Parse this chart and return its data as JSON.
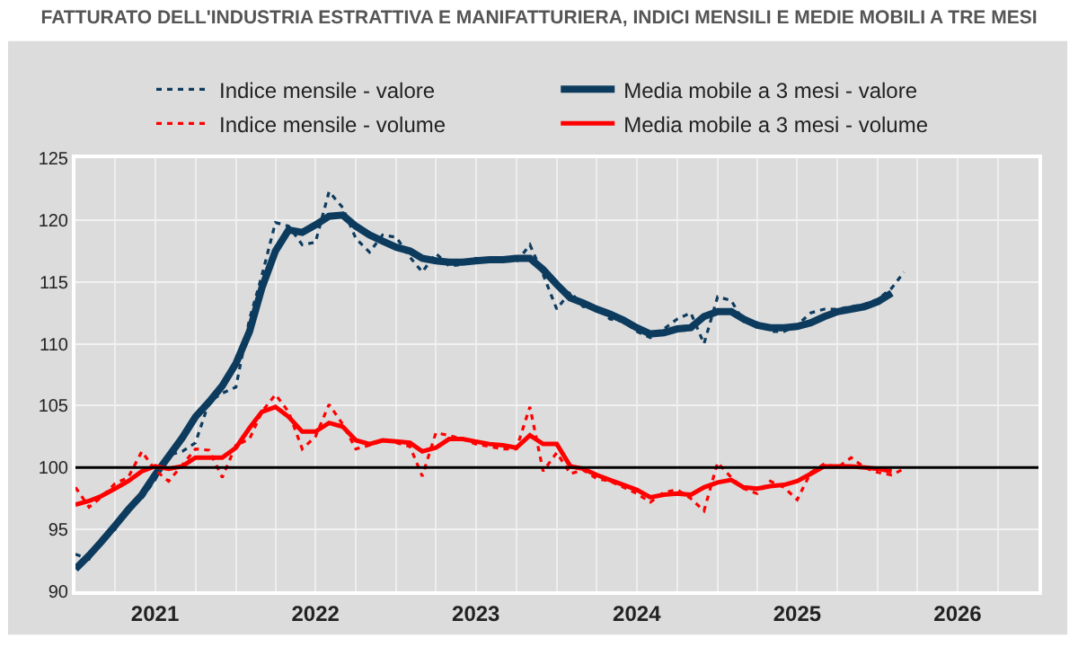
{
  "chart_data": {
    "type": "line",
    "title": "FATTURATO DELL'INDUSTRIA ESTRATTIVA E MANIFATTURIERA, INDICI MENSILI E MEDIE MOBILI A TRE MESI",
    "x": [
      "2021-01",
      "2021-02",
      "2021-03",
      "2021-04",
      "2021-05",
      "2021-06",
      "2021-07",
      "2021-08",
      "2021-09",
      "2021-10",
      "2021-11",
      "2021-12",
      "2022-01",
      "2022-02",
      "2022-03",
      "2022-04",
      "2022-05",
      "2022-06",
      "2022-07",
      "2022-08",
      "2022-09",
      "2022-10",
      "2022-11",
      "2022-12",
      "2023-01",
      "2023-02",
      "2023-03",
      "2023-04",
      "2023-05",
      "2023-06",
      "2023-07",
      "2023-08",
      "2023-09",
      "2023-10",
      "2023-11",
      "2023-12",
      "2024-01",
      "2024-02",
      "2024-03",
      "2024-04",
      "2024-05",
      "2024-06",
      "2024-07",
      "2024-08",
      "2024-09",
      "2024-10",
      "2024-11",
      "2024-12",
      "2025-01",
      "2025-02",
      "2025-03",
      "2025-04",
      "2025-05",
      "2025-06",
      "2025-07",
      "2025-08",
      "2025-09",
      "2025-10",
      "2025-11",
      "2025-12",
      "2026-01",
      "2026-02",
      "2026-03"
    ],
    "xlim": [
      "2021-01",
      "2027-01"
    ],
    "xticks": [
      {
        "value": "2021-07",
        "label": "2021"
      },
      {
        "value": "2022-07",
        "label": "2022"
      },
      {
        "value": "2023-07",
        "label": "2023"
      },
      {
        "value": "2024-07",
        "label": "2024"
      },
      {
        "value": "2025-07",
        "label": "2025"
      },
      {
        "value": "2026-07",
        "label": "2026"
      }
    ],
    "ylim": [
      90,
      125
    ],
    "yticks": [
      90,
      95,
      100,
      105,
      110,
      115,
      120,
      125
    ],
    "grid": true,
    "legend": "top",
    "ref_lines": [
      {
        "axis": "y",
        "value": 100,
        "color": "#000000"
      }
    ],
    "series": [
      {
        "name": "Indice mensile - valore",
        "color": "#0d3b5e",
        "line_style": "dotted",
        "values": [
          93.0,
          92.6,
          94.2,
          95.0,
          96.8,
          97.5,
          99.0,
          101.0,
          101.3,
          102.0,
          105.3,
          106.0,
          106.5,
          112.0,
          115.5,
          119.8,
          119.5,
          118.0,
          118.2,
          122.3,
          121.0,
          118.5,
          117.4,
          118.8,
          118.6,
          117.0,
          115.8,
          117.3,
          116.3,
          116.4,
          116.9,
          116.7,
          116.8,
          116.6,
          118.0,
          115.6,
          112.8,
          114.2,
          113.0,
          112.9,
          112.0,
          111.8,
          111.0,
          110.5,
          111.2,
          112.0,
          112.5,
          110.0,
          113.8,
          113.5,
          111.8,
          111.7,
          111.0,
          111.0,
          111.5,
          112.5,
          112.8,
          112.8,
          113.0,
          113.2,
          113.6,
          114.5,
          115.8
        ]
      },
      {
        "name": "Media mobile a 3 mesi - valore",
        "color": "#0d3b5e",
        "line_style": "solid",
        "values": [
          91.8,
          92.9,
          94.0,
          95.3,
          96.6,
          97.8,
          99.4,
          100.9,
          102.4,
          104.1,
          105.3,
          106.6,
          108.4,
          111.0,
          114.5,
          117.5,
          119.2,
          119.0,
          119.6,
          120.3,
          120.4,
          119.5,
          118.8,
          118.3,
          117.8,
          117.5,
          116.9,
          116.7,
          116.6,
          116.6,
          116.7,
          116.8,
          116.8,
          116.9,
          116.9,
          116.0,
          114.8,
          113.7,
          113.3,
          112.8,
          112.4,
          111.9,
          111.3,
          110.8,
          110.9,
          111.2,
          111.3,
          112.2,
          112.6,
          112.6,
          112.0,
          111.5,
          111.3,
          111.3,
          111.4,
          111.7,
          112.2,
          112.6,
          112.8,
          113.0,
          113.4,
          114.1,
          null
        ]
      },
      {
        "name": "Indice mensile - volume",
        "color": "#ff0000",
        "line_style": "dotted",
        "values": [
          98.4,
          96.8,
          97.6,
          98.7,
          99.2,
          101.3,
          99.8,
          98.9,
          100.2,
          101.5,
          101.4,
          99.2,
          101.8,
          102.3,
          104.5,
          105.9,
          104.5,
          101.5,
          102.5,
          105.1,
          103.5,
          101.5,
          101.8,
          102.2,
          102.0,
          101.7,
          99.3,
          102.8,
          102.6,
          102.3,
          101.9,
          101.7,
          101.5,
          101.5,
          104.9,
          99.7,
          101.2,
          99.5,
          99.8,
          99.1,
          98.9,
          98.4,
          97.9,
          97.2,
          98.0,
          98.2,
          97.5,
          96.5,
          100.4,
          99.2,
          98.3,
          97.9,
          98.9,
          98.4,
          97.4,
          99.6,
          100.3,
          100.0,
          100.8,
          100.0,
          99.6,
          99.4,
          99.9
        ]
      },
      {
        "name": "Media mobile a 3 mesi - volume",
        "color": "#ff0000",
        "line_style": "solid",
        "values": [
          97.0,
          97.3,
          97.7,
          98.3,
          98.9,
          99.7,
          100.1,
          99.9,
          100.1,
          100.8,
          100.8,
          100.8,
          101.6,
          103.2,
          104.5,
          104.9,
          104.1,
          102.9,
          102.9,
          103.6,
          103.3,
          102.2,
          101.9,
          102.2,
          102.1,
          102.0,
          101.3,
          101.6,
          102.3,
          102.3,
          102.1,
          101.9,
          101.8,
          101.6,
          102.6,
          101.9,
          101.9,
          100.1,
          99.9,
          99.4,
          99.0,
          98.6,
          98.2,
          97.6,
          97.8,
          97.9,
          97.8,
          98.4,
          98.8,
          99.0,
          98.4,
          98.3,
          98.5,
          98.6,
          98.9,
          99.5,
          100.1,
          100.1,
          100.1,
          100.0,
          99.9,
          99.7,
          null
        ]
      }
    ]
  }
}
